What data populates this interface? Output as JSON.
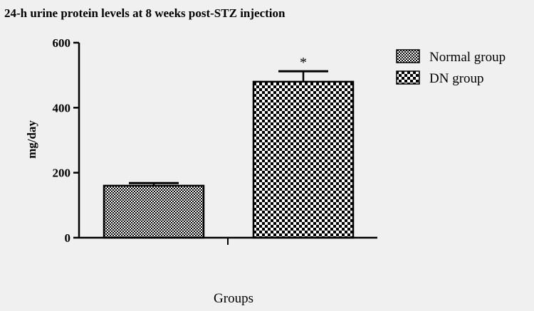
{
  "chart_data": {
    "type": "bar",
    "title": "24-h urine protein levels at 8 weeks post-STZ injection",
    "xlabel": "Groups",
    "ylabel": "mg/day",
    "ylim": [
      0,
      600
    ],
    "yticks": [
      "0",
      "200",
      "400",
      "600"
    ],
    "categories": [
      "Normal group",
      "DN group"
    ],
    "values": [
      160,
      480
    ],
    "error_bars": [
      8,
      32
    ],
    "significance": [
      "",
      "*"
    ],
    "legend": {
      "position": "top-right",
      "entries": [
        "Normal group",
        "DN group"
      ]
    },
    "grid": false
  }
}
